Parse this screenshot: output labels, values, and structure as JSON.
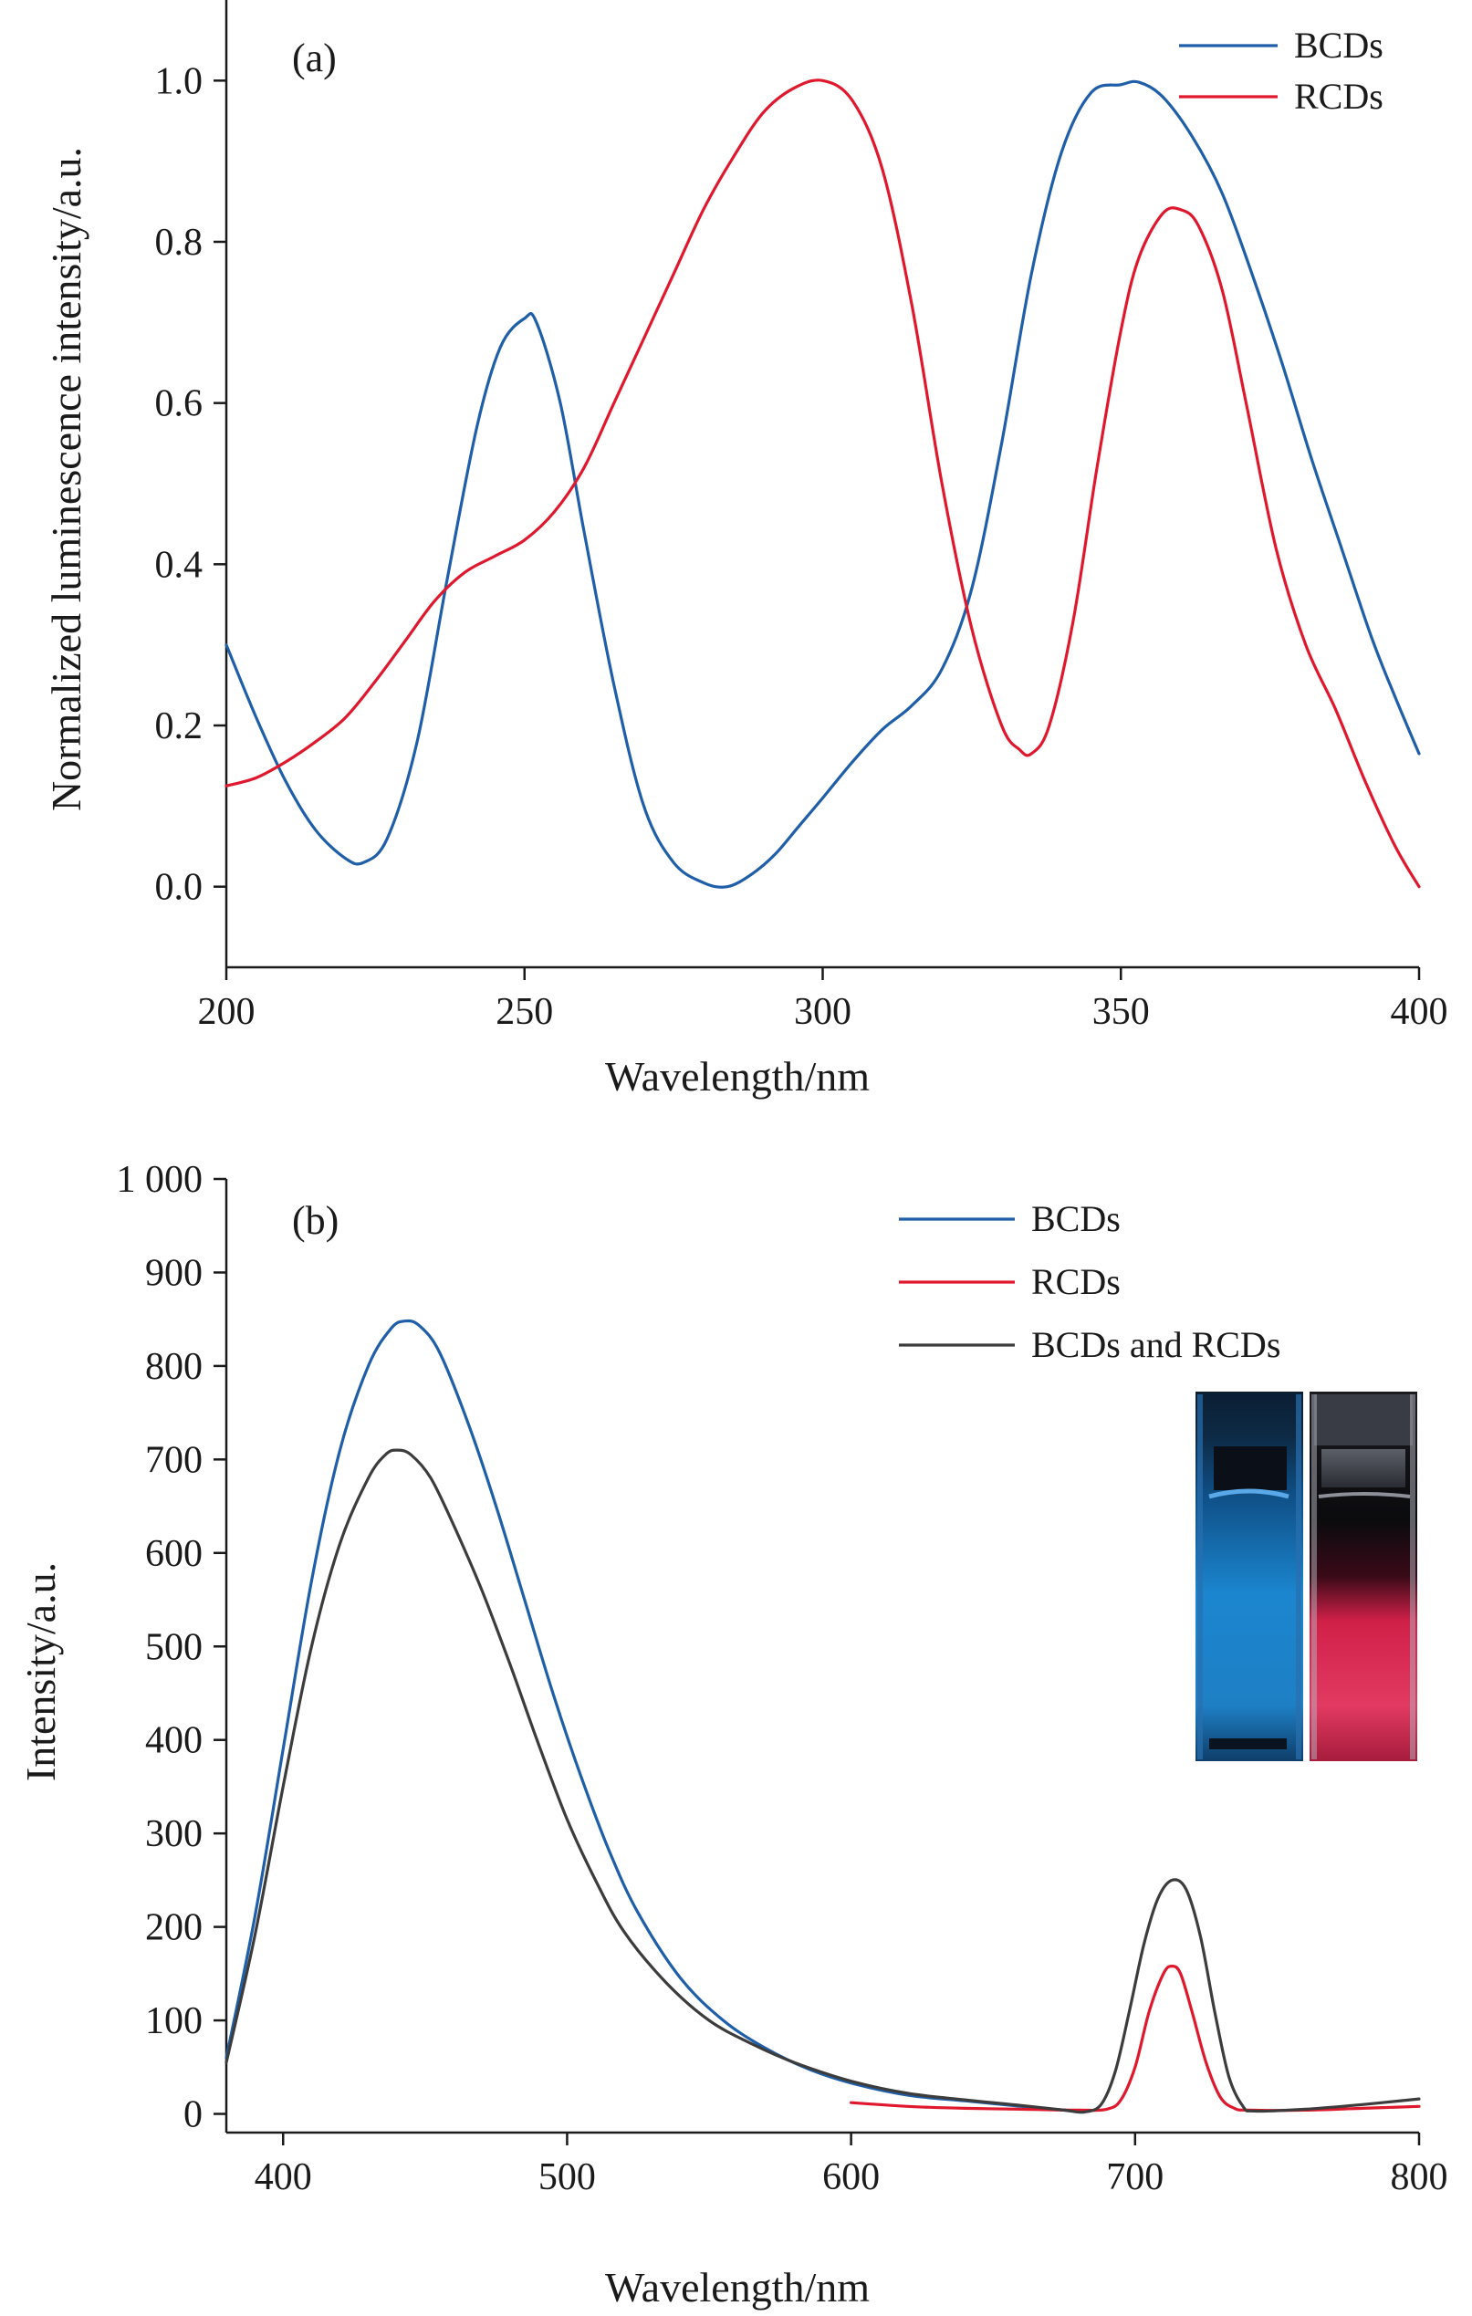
{
  "chart_data": [
    {
      "type": "line",
      "panel_label": "(a)",
      "title": "",
      "xlabel": "Wavelength/nm",
      "ylabel": "Normalized luminescence intensity/a.u.",
      "xlim": [
        200,
        400
      ],
      "ylim": [
        -0.1,
        1.1
      ],
      "x_ticks": [
        200,
        250,
        300,
        350,
        400
      ],
      "x_tick_labels": [
        "200",
        "250",
        "300",
        "350",
        "400"
      ],
      "y_ticks": [
        0.0,
        0.2,
        0.4,
        0.6,
        0.8,
        1.0
      ],
      "y_tick_labels": [
        "0.0",
        "0.2",
        "0.4",
        "0.6",
        "0.8",
        "1.0"
      ],
      "grid": false,
      "legend_position": "top-right",
      "series": [
        {
          "name": "BCDs",
          "color": "#1f5ea8",
          "x": [
            200,
            205,
            210,
            215,
            220,
            223,
            227,
            232,
            237,
            242,
            246,
            250,
            252,
            256,
            260,
            265,
            270,
            275,
            280,
            284,
            288,
            292,
            296,
            300,
            305,
            310,
            315,
            320,
            325,
            330,
            335,
            340,
            345,
            350,
            353,
            357,
            362,
            367,
            372,
            377,
            382,
            387,
            392,
            396,
            400
          ],
          "y": [
            0.3,
            0.21,
            0.13,
            0.07,
            0.035,
            0.03,
            0.06,
            0.18,
            0.38,
            0.57,
            0.67,
            0.705,
            0.7,
            0.6,
            0.44,
            0.25,
            0.1,
            0.03,
            0.005,
            0.0,
            0.015,
            0.04,
            0.075,
            0.11,
            0.155,
            0.195,
            0.225,
            0.27,
            0.37,
            0.55,
            0.76,
            0.91,
            0.985,
            0.995,
            0.998,
            0.98,
            0.93,
            0.86,
            0.76,
            0.65,
            0.53,
            0.42,
            0.31,
            0.235,
            0.165
          ]
        },
        {
          "name": "RCDs",
          "color": "#e0182d",
          "x": [
            200,
            205,
            210,
            215,
            220,
            225,
            230,
            235,
            240,
            245,
            250,
            255,
            260,
            265,
            270,
            275,
            280,
            285,
            290,
            295,
            300,
            305,
            310,
            315,
            320,
            325,
            330,
            333,
            335,
            338,
            342,
            346,
            350,
            353,
            357,
            360,
            363,
            367,
            371,
            376,
            381,
            386,
            391,
            396,
            400
          ],
          "y": [
            0.125,
            0.135,
            0.155,
            0.18,
            0.21,
            0.255,
            0.305,
            0.355,
            0.39,
            0.41,
            0.43,
            0.465,
            0.52,
            0.6,
            0.68,
            0.76,
            0.84,
            0.905,
            0.96,
            0.99,
            1.0,
            0.975,
            0.89,
            0.72,
            0.5,
            0.32,
            0.2,
            0.17,
            0.165,
            0.2,
            0.33,
            0.52,
            0.69,
            0.78,
            0.835,
            0.84,
            0.82,
            0.74,
            0.6,
            0.42,
            0.3,
            0.22,
            0.13,
            0.05,
            0.0
          ]
        }
      ]
    },
    {
      "type": "line",
      "panel_label": "(b)",
      "title": "",
      "xlabel": "Wavelength/nm",
      "ylabel": "Intensity/a.u.",
      "xlim": [
        380,
        800
      ],
      "ylim": [
        -20,
        1000
      ],
      "x_ticks": [
        400,
        500,
        600,
        700,
        800
      ],
      "x_tick_labels": [
        "400",
        "500",
        "600",
        "700",
        "800"
      ],
      "y_ticks": [
        0,
        100,
        200,
        300,
        400,
        500,
        600,
        700,
        800,
        900,
        1000
      ],
      "y_tick_labels": [
        "0",
        "100",
        "200",
        "300",
        "400",
        "500",
        "600",
        "700",
        "800",
        "900",
        "1 000"
      ],
      "grid": false,
      "legend_position": "top-right",
      "inset": "photo of two cuvettes, blue glowing and red glowing",
      "series": [
        {
          "name": "BCDs",
          "color": "#1f5ea8",
          "x": [
            380,
            390,
            400,
            410,
            420,
            430,
            438,
            443,
            448,
            455,
            465,
            475,
            485,
            495,
            505,
            515,
            525,
            540,
            555,
            570,
            585,
            600,
            620,
            640,
            660,
            675,
            682
          ],
          "y": [
            60,
            210,
            390,
            570,
            710,
            800,
            840,
            848,
            843,
            815,
            740,
            650,
            550,
            450,
            360,
            280,
            215,
            145,
            100,
            70,
            48,
            33,
            20,
            14,
            8,
            4,
            2
          ]
        },
        {
          "name": "RCDs",
          "color": "#e0182d",
          "x": [
            600,
            620,
            640,
            660,
            680,
            690,
            695,
            700,
            705,
            710,
            713,
            716,
            720,
            725,
            730,
            735,
            740,
            760,
            780,
            800
          ],
          "y": [
            12,
            8,
            6,
            5,
            4,
            5,
            15,
            50,
            110,
            150,
            158,
            150,
            110,
            55,
            18,
            6,
            4,
            4,
            6,
            8
          ]
        },
        {
          "name": "BCDs and RCDs",
          "color": "#3c3c3c",
          "x": [
            380,
            390,
            400,
            410,
            420,
            430,
            436,
            440,
            445,
            452,
            460,
            470,
            480,
            490,
            500,
            510,
            520,
            535,
            550,
            565,
            580,
            600,
            620,
            640,
            660,
            675,
            682,
            688,
            693,
            698,
            703,
            708,
            713,
            718,
            723,
            728,
            733,
            738,
            742,
            760,
            780,
            800
          ],
          "y": [
            55,
            190,
            350,
            500,
            610,
            680,
            705,
            710,
            705,
            680,
            630,
            560,
            480,
            395,
            315,
            250,
            195,
            140,
            100,
            75,
            55,
            35,
            22,
            15,
            9,
            4,
            2,
            10,
            45,
            110,
            180,
            230,
            250,
            240,
            190,
            110,
            40,
            8,
            3,
            5,
            10,
            16
          ]
        }
      ]
    }
  ]
}
